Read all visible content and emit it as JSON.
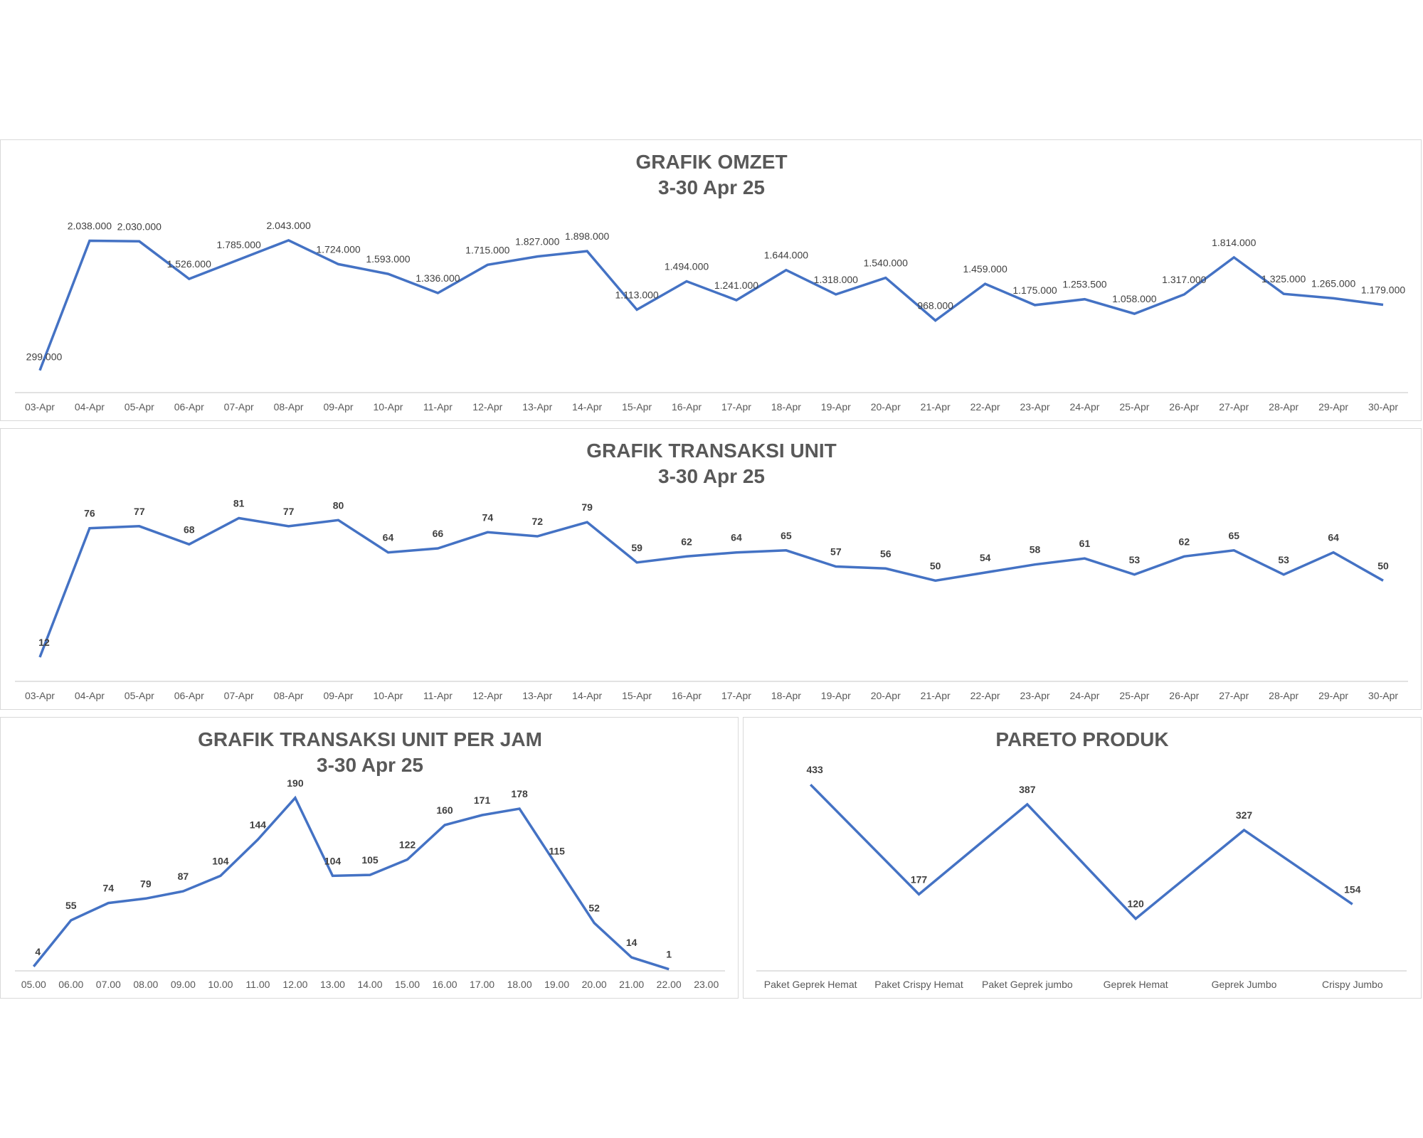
{
  "colors": {
    "line": "#4472c4",
    "axis": "#d9d9d9",
    "text": "#595959"
  },
  "chart_data": [
    {
      "id": "omzet",
      "type": "line",
      "title": [
        "GRAFIK OMZET",
        "3-30 Apr 25"
      ],
      "categories": [
        "03-Apr",
        "04-Apr",
        "05-Apr",
        "06-Apr",
        "07-Apr",
        "08-Apr",
        "09-Apr",
        "10-Apr",
        "11-Apr",
        "12-Apr",
        "13-Apr",
        "14-Apr",
        "15-Apr",
        "16-Apr",
        "17-Apr",
        "18-Apr",
        "19-Apr",
        "20-Apr",
        "21-Apr",
        "22-Apr",
        "23-Apr",
        "24-Apr",
        "25-Apr",
        "26-Apr",
        "27-Apr",
        "28-Apr",
        "29-Apr",
        "30-Apr"
      ],
      "values": [
        299000,
        2038000,
        2030000,
        1526000,
        1785000,
        2043000,
        1724000,
        1593000,
        1336000,
        1715000,
        1827000,
        1898000,
        1113000,
        1494000,
        1241000,
        1644000,
        1318000,
        1540000,
        968000,
        1459000,
        1175000,
        1253500,
        1058000,
        1317000,
        1814000,
        1325000,
        1265000,
        1179000
      ],
      "labels": [
        "299.000",
        "2.038.000",
        "2.030.000",
        "1.526.000",
        "1.785.000",
        "2.043.000",
        "1.724.000",
        "1.593.000",
        "1.336.000",
        "1.715.000",
        "1.827.000",
        "1.898.000",
        "1.113.000",
        "1.494.000",
        "1.241.000",
        "1.644.000",
        "1.318.000",
        "1.540.000",
        "968.000",
        "1.459.000",
        "1.175.000",
        "1.253.500",
        "1.058.000",
        "1.317.000",
        "1.814.000",
        "1.325.000",
        "1.265.000",
        "1.179.000"
      ],
      "ylim": [
        0,
        2300000
      ],
      "grid": false,
      "legend": "none"
    },
    {
      "id": "unit",
      "type": "line",
      "title": [
        "GRAFIK TRANSAKSI UNIT",
        "3-30 Apr 25"
      ],
      "categories": [
        "03-Apr",
        "04-Apr",
        "05-Apr",
        "06-Apr",
        "07-Apr",
        "08-Apr",
        "09-Apr",
        "10-Apr",
        "11-Apr",
        "12-Apr",
        "13-Apr",
        "14-Apr",
        "15-Apr",
        "16-Apr",
        "17-Apr",
        "18-Apr",
        "19-Apr",
        "20-Apr",
        "21-Apr",
        "22-Apr",
        "23-Apr",
        "24-Apr",
        "25-Apr",
        "26-Apr",
        "27-Apr",
        "28-Apr",
        "29-Apr",
        "30-Apr"
      ],
      "values": [
        12,
        76,
        77,
        68,
        81,
        77,
        80,
        64,
        66,
        74,
        72,
        79,
        59,
        62,
        64,
        65,
        57,
        56,
        50,
        54,
        58,
        61,
        53,
        62,
        65,
        53,
        64,
        50
      ],
      "labels": [
        "12",
        "76",
        "77",
        "68",
        "81",
        "77",
        "80",
        "64",
        "66",
        "74",
        "72",
        "79",
        "59",
        "62",
        "64",
        "65",
        "57",
        "56",
        "50",
        "54",
        "58",
        "61",
        "53",
        "62",
        "65",
        "53",
        "64",
        "50"
      ],
      "ylim": [
        0,
        90
      ],
      "grid": false,
      "legend": "none"
    },
    {
      "id": "jam",
      "type": "line",
      "title": [
        "GRAFIK TRANSAKSI UNIT PER JAM",
        "3-30 Apr 25"
      ],
      "categories": [
        "05.00",
        "06.00",
        "07.00",
        "08.00",
        "09.00",
        "10.00",
        "11.00",
        "12.00",
        "13.00",
        "14.00",
        "15.00",
        "16.00",
        "17.00",
        "18.00",
        "19.00",
        "20.00",
        "21.00",
        "22.00",
        "23.00"
      ],
      "values": [
        4,
        55,
        74,
        79,
        87,
        104,
        144,
        190,
        104,
        105,
        122,
        160,
        171,
        178,
        115,
        52,
        14,
        1,
        null
      ],
      "labels": [
        "4",
        "55",
        "74",
        "79",
        "87",
        "104",
        "144",
        "190",
        "104",
        "105",
        "122",
        "160",
        "171",
        "178",
        "115",
        "52",
        "14",
        "1",
        ""
      ],
      "ylim": [
        0,
        200
      ],
      "grid": false,
      "legend": "none"
    },
    {
      "id": "pareto",
      "type": "line",
      "title": [
        "PARETO PRODUK"
      ],
      "categories": [
        "Paket Geprek Hemat",
        "Paket Crispy Hemat",
        "Paket Geprek jumbo",
        "Geprek Hemat",
        "Geprek Jumbo",
        "Crispy Jumbo"
      ],
      "values": [
        433,
        177,
        387,
        120,
        327,
        154
      ],
      "labels": [
        "433",
        "177",
        "387",
        "120",
        "327",
        "154"
      ],
      "ylim": [
        0,
        450
      ],
      "grid": false,
      "legend": "none"
    }
  ]
}
